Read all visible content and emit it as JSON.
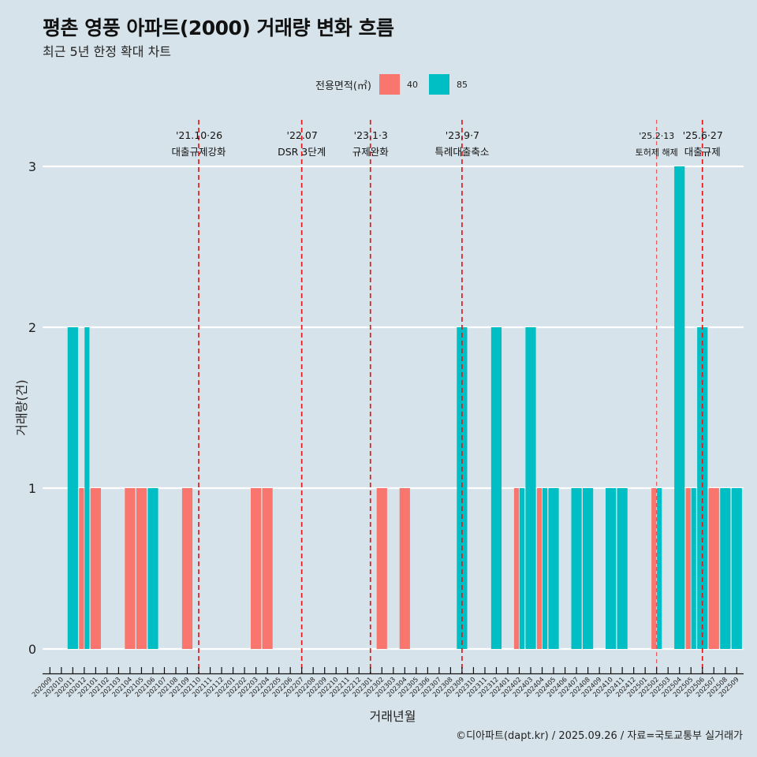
{
  "title": "평촌 영풍 아파트(2000) 거래량 변화 흐름",
  "subtitle": "최근 5년 한정 확대 차트",
  "footer": "©디아파트(dapt.kr) / 2025.09.26 / 자료=국토교통부 실거래가",
  "colors": {
    "background": "#d7e3ea",
    "s40": "#f8766d",
    "s85": "#00bfc4",
    "event": "#e31a1c",
    "grid": "#ffffff"
  },
  "chart_data": {
    "type": "bar",
    "title": "평촌 영풍 아파트(2000) 거래량 변화 흐름",
    "subtitle": "최근 5년 한정 확대 차트",
    "xlabel": "거래년월",
    "ylabel": "거래량(건)",
    "ylim": [
      0,
      3
    ],
    "yticks": [
      "0",
      "1",
      "2",
      "3"
    ],
    "grid": true,
    "legend": {
      "title": "전용면적(㎡)",
      "placement": "top-center",
      "entries": [
        "40",
        "85"
      ]
    },
    "categories": [
      "202009",
      "202010",
      "202011",
      "202012",
      "202101",
      "202102",
      "202103",
      "202104",
      "202105",
      "202106",
      "202107",
      "202108",
      "202109",
      "202110",
      "202111",
      "202112",
      "202201",
      "202202",
      "202203",
      "202204",
      "202205",
      "202206",
      "202207",
      "202208",
      "202209",
      "202210",
      "202211",
      "202212",
      "202301",
      "202302",
      "202303",
      "202304",
      "202305",
      "202306",
      "202307",
      "202308",
      "202309",
      "202310",
      "202311",
      "202312",
      "202401",
      "202402",
      "202403",
      "202404",
      "202405",
      "202406",
      "202407",
      "202408",
      "202409",
      "202410",
      "202411",
      "202412",
      "202501",
      "202502",
      "202503",
      "202504",
      "202505",
      "202506",
      "202507",
      "202508",
      "202509"
    ],
    "series": [
      {
        "name": "40",
        "values": {
          "202012": 1,
          "202101": 1,
          "202104": 1,
          "202105": 1,
          "202109": 1,
          "202203": 1,
          "202204": 1,
          "202302": 1,
          "202304": 1,
          "202402": 1,
          "202404": 1,
          "202502": 1,
          "202505": 1,
          "202507": 1
        }
      },
      {
        "name": "85",
        "values": {
          "202011": 2,
          "202012": 2,
          "202106": 1,
          "202309": 2,
          "202312": 2,
          "202402": 1,
          "202403": 2,
          "202404": 1,
          "202405": 1,
          "202407": 1,
          "202408": 1,
          "202410": 1,
          "202411": 1,
          "202502": 1,
          "202504": 3,
          "202505": 1,
          "202506": 2,
          "202508": 1,
          "202509": 1
        }
      }
    ],
    "events": [
      {
        "month": "202110",
        "date": "'21.10·26",
        "label": "대출규제강화",
        "minor": false
      },
      {
        "month": "202207",
        "date": "'22.07",
        "label": "DSR 3단계",
        "minor": false
      },
      {
        "month": "202301",
        "date": "'23.1·3",
        "label": "규제완화",
        "minor": false
      },
      {
        "month": "202309",
        "date": "'23.9·7",
        "label": "특례대출축소",
        "minor": false
      },
      {
        "month": "202502",
        "date": "'25.2·13",
        "label": "토허제 해제",
        "minor": true
      },
      {
        "month": "202506",
        "date": "'25.6·27",
        "label": "대출규제",
        "minor": false
      }
    ]
  }
}
